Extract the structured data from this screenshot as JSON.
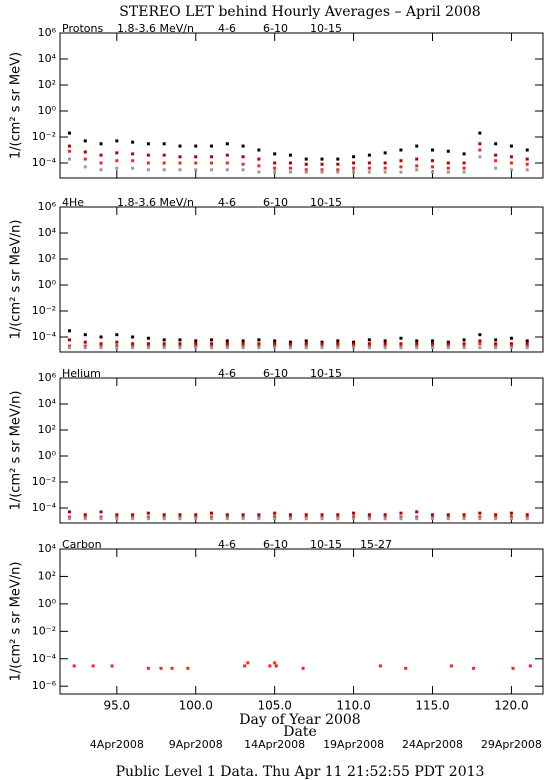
{
  "title": "STEREO LET behind Hourly Averages – April 2008",
  "xlabel": "Day of Year 2008",
  "x2label": "Date",
  "footer": "Public Level 1 Data. Thu Apr 11 21:52:55 PDT 2013",
  "chart_data": [
    {
      "type": "scatter",
      "label": "Protons",
      "ylabel": "1/(cm² s sr MeV)",
      "log_y": true,
      "xlim": [
        91.4,
        122.0
      ],
      "ylim": [
        7e-06,
        1000000
      ],
      "yticks": [
        {
          "value": 0.0001,
          "label": "10⁻⁴"
        },
        {
          "value": 0.01,
          "label": "10⁻²"
        },
        {
          "value": 1,
          "label": "10⁰"
        },
        {
          "value": 100,
          "label": "10²"
        },
        {
          "value": 10000,
          "label": "10⁴"
        },
        {
          "value": 1000000,
          "label": "10⁶"
        }
      ],
      "x": [
        92,
        93,
        94,
        95,
        96,
        97,
        98,
        99,
        100,
        101,
        102,
        103,
        104,
        105,
        106,
        107,
        108,
        109,
        110,
        111,
        112,
        113,
        114,
        115,
        116,
        117,
        118,
        119,
        120,
        121
      ],
      "series": [
        {
          "name": "1.8-3.6 MeV/n",
          "color": "#000000",
          "values": [
            0.02,
            0.005,
            0.003,
            0.005,
            0.004,
            0.003,
            0.003,
            0.002,
            0.002,
            0.002,
            0.003,
            0.002,
            0.001,
            0.0005,
            0.0004,
            0.0002,
            0.0002,
            0.0002,
            0.0003,
            0.0004,
            0.0006,
            0.001,
            0.002,
            0.001,
            0.0008,
            0.0005,
            0.02,
            0.003,
            0.002,
            0.001
          ]
        },
        {
          "name": "4-6",
          "color": "#b00000",
          "values": [
            0.002,
            0.0007,
            0.0004,
            0.0006,
            0.0005,
            0.0004,
            0.0004,
            0.0003,
            0.0003,
            0.0003,
            0.0004,
            0.0003,
            0.0002,
            0.0001,
            0.0001,
            8e-05,
            8e-05,
            8e-05,
            0.0001,
            0.0001,
            0.0001,
            0.00015,
            0.0002,
            0.00015,
            0.0001,
            0.0001,
            0.003,
            0.0004,
            0.0003,
            0.0002
          ]
        },
        {
          "name": "6-10",
          "color": "#ff2020",
          "values": [
            0.0008,
            0.0002,
            0.0001,
            0.00015,
            0.00015,
            0.0001,
            0.0001,
            0.0001,
            0.0001,
            0.0001,
            0.0001,
            8e-05,
            6e-05,
            4e-05,
            4e-05,
            3e-05,
            3e-05,
            3e-05,
            4e-05,
            4e-05,
            4e-05,
            5e-05,
            6e-05,
            5e-05,
            4e-05,
            4e-05,
            0.001,
            0.00015,
            0.0001,
            8e-05
          ]
        },
        {
          "name": "10-15",
          "color": "#999999",
          "values": [
            0.0002,
            5e-05,
            3e-05,
            4e-05,
            4e-05,
            3e-05,
            3e-05,
            3e-05,
            3e-05,
            3e-05,
            3e-05,
            3e-05,
            2e-05,
            2e-05,
            2e-05,
            2e-05,
            2e-05,
            2e-05,
            2e-05,
            2e-05,
            2e-05,
            2e-05,
            3e-05,
            2e-05,
            2e-05,
            2e-05,
            0.0003,
            4e-05,
            3e-05,
            3e-05
          ]
        }
      ]
    },
    {
      "type": "scatter",
      "label": "4He",
      "ylabel": "1/(cm² s sr MeV/n)",
      "log_y": true,
      "xlim": [
        91.4,
        122.0
      ],
      "ylim": [
        7e-06,
        1000000
      ],
      "yticks": [
        {
          "value": 0.0001,
          "label": "10⁻⁴"
        },
        {
          "value": 0.01,
          "label": "10⁻²"
        },
        {
          "value": 1,
          "label": "10⁰"
        },
        {
          "value": 100,
          "label": "10²"
        },
        {
          "value": 10000,
          "label": "10⁴"
        },
        {
          "value": 1000000,
          "label": "10⁶"
        }
      ],
      "x": [
        92,
        93,
        94,
        95,
        96,
        97,
        98,
        99,
        100,
        101,
        102,
        103,
        104,
        105,
        106,
        107,
        108,
        109,
        110,
        111,
        112,
        113,
        114,
        115,
        116,
        117,
        118,
        119,
        120,
        121
      ],
      "series": [
        {
          "name": "1.8-3.6 MeV/n",
          "color": "#000000",
          "values": [
            0.0003,
            0.00015,
            0.0001,
            0.00015,
            0.0001,
            8e-05,
            6e-05,
            6e-05,
            5e-05,
            6e-05,
            5e-05,
            5e-05,
            6e-05,
            5e-05,
            4e-05,
            5e-05,
            4e-05,
            5e-05,
            4e-05,
            6e-05,
            5e-05,
            8e-05,
            5e-05,
            5e-05,
            4e-05,
            6e-05,
            0.00015,
            6e-05,
            8e-05,
            5e-05
          ]
        },
        {
          "name": "4-6",
          "color": "#b00000",
          "values": [
            6e-05,
            4e-05,
            3e-05,
            4e-05,
            3e-05,
            3e-05,
            3e-05,
            3e-05,
            3e-05,
            3e-05,
            3e-05,
            3e-05,
            3e-05,
            3e-05,
            3e-05,
            3e-05,
            3e-05,
            3e-05,
            3e-05,
            3e-05,
            3e-05,
            3e-05,
            3e-05,
            3e-05,
            3e-05,
            3e-05,
            5e-05,
            3e-05,
            3e-05,
            3e-05
          ]
        },
        {
          "name": "6-10",
          "color": "#ff2020",
          "values": [
            2e-05,
            2e-05,
            2e-05,
            2e-05,
            2e-05,
            2e-05,
            2e-05,
            2e-05,
            2e-05,
            2e-05,
            2e-05,
            2e-05,
            2e-05,
            2e-05,
            2e-05,
            2e-05,
            2e-05,
            2e-05,
            2e-05,
            2e-05,
            2e-05,
            2e-05,
            2e-05,
            2e-05,
            2e-05,
            2e-05,
            3e-05,
            2e-05,
            2e-05,
            2e-05
          ]
        },
        {
          "name": "10-15",
          "color": "#999999",
          "values": [
            1.5e-05,
            1.5e-05,
            1.5e-05,
            1.5e-05,
            1.5e-05,
            1.5e-05,
            1.5e-05,
            1.5e-05,
            1.5e-05,
            1.5e-05,
            1.5e-05,
            1.5e-05,
            1.5e-05,
            1.5e-05,
            1.5e-05,
            1.5e-05,
            1.5e-05,
            1.5e-05,
            1.5e-05,
            1.5e-05,
            1.5e-05,
            1.5e-05,
            1.5e-05,
            1.5e-05,
            1.5e-05,
            1.5e-05,
            1.5e-05,
            1.5e-05,
            1.5e-05,
            1.5e-05
          ]
        }
      ]
    },
    {
      "type": "scatter",
      "label": "Helium",
      "ylabel": "1/(cm² s sr MeV/n)",
      "log_y": true,
      "xlim": [
        91.4,
        122.0
      ],
      "ylim": [
        7e-06,
        1000000
      ],
      "yticks": [
        {
          "value": 0.0001,
          "label": "10⁻⁴"
        },
        {
          "value": 0.01,
          "label": "10⁻²"
        },
        {
          "value": 1,
          "label": "10⁰"
        },
        {
          "value": 100,
          "label": "10²"
        },
        {
          "value": 10000,
          "label": "10⁴"
        },
        {
          "value": 1000000,
          "label": "10⁶"
        }
      ],
      "x": [
        92,
        93,
        94,
        95,
        96,
        97,
        98,
        99,
        100,
        101,
        102,
        103,
        104,
        105,
        106,
        107,
        108,
        109,
        110,
        111,
        112,
        113,
        114,
        115,
        116,
        117,
        118,
        119,
        120,
        121
      ],
      "series": [
        {
          "name": "4-6",
          "color": "#b00000",
          "values": [
            5e-05,
            3e-05,
            5e-05,
            3e-05,
            3e-05,
            4e-05,
            3e-05,
            3e-05,
            3e-05,
            4e-05,
            3e-05,
            3e-05,
            3e-05,
            4e-05,
            3e-05,
            3e-05,
            3e-05,
            3e-05,
            4e-05,
            3e-05,
            3e-05,
            4e-05,
            5e-05,
            3e-05,
            3e-05,
            3e-05,
            4e-05,
            3e-05,
            4e-05,
            3e-05
          ]
        },
        {
          "name": "6-10",
          "color": "#ff2020",
          "values": [
            2e-05,
            2e-05,
            2e-05,
            2e-05,
            2e-05,
            2e-05,
            2e-05,
            2e-05,
            2e-05,
            2e-05,
            2e-05,
            2e-05,
            2e-05,
            2e-05,
            2e-05,
            2e-05,
            2e-05,
            2e-05,
            2e-05,
            2e-05,
            2e-05,
            2e-05,
            2e-05,
            2e-05,
            2e-05,
            2e-05,
            2e-05,
            2e-05,
            2e-05,
            2e-05
          ]
        },
        {
          "name": "10-15",
          "color": "#999999",
          "values": [
            1.5e-05,
            1.5e-05,
            1.5e-05,
            1.5e-05,
            1.5e-05,
            1.5e-05,
            1.5e-05,
            1.5e-05,
            1.5e-05,
            1.5e-05,
            1.5e-05,
            1.5e-05,
            1.5e-05,
            1.5e-05,
            1.5e-05,
            1.5e-05,
            1.5e-05,
            1.5e-05,
            1.5e-05,
            1.5e-05,
            1.5e-05,
            1.5e-05,
            1.5e-05,
            1.5e-05,
            1.5e-05,
            1.5e-05,
            1.5e-05,
            1.5e-05,
            1.5e-05,
            1.5e-05
          ]
        }
      ]
    },
    {
      "type": "scatter",
      "label": "Carbon",
      "ylabel": "1/(cm² s sr MeV/n)",
      "log_y": true,
      "xlim": [
        91.4,
        122.0
      ],
      "ylim": [
        2.7e-07,
        10000
      ],
      "yticks": [
        {
          "value": 1e-06,
          "label": "10⁻⁶"
        },
        {
          "value": 0.0001,
          "label": "10⁻⁴"
        },
        {
          "value": 0.01,
          "label": "10⁻²"
        },
        {
          "value": 1,
          "label": "10⁰"
        },
        {
          "value": 100,
          "label": "10²"
        },
        {
          "value": 10000,
          "label": "10⁴"
        }
      ],
      "xticks": [
        {
          "value": 95,
          "label": "95.0"
        },
        {
          "value": 100,
          "label": "100.0"
        },
        {
          "value": 105,
          "label": "105.0"
        },
        {
          "value": 110,
          "label": "110.0"
        },
        {
          "value": 115,
          "label": "115.0"
        },
        {
          "value": 120,
          "label": "120.0"
        }
      ],
      "date_ticks": [
        {
          "value": 95,
          "label": "4Apr2008"
        },
        {
          "value": 100,
          "label": "9Apr2008"
        },
        {
          "value": 105,
          "label": "14Apr2008"
        },
        {
          "value": 110,
          "label": "19Apr2008"
        },
        {
          "value": 115,
          "label": "24Apr2008"
        },
        {
          "value": 120,
          "label": "29Apr2008"
        }
      ],
      "x": [
        92.3,
        93.5,
        94.7,
        97.0,
        97.8,
        98.5,
        99.5,
        103.1,
        103.3,
        104.7,
        105.0,
        105.1,
        106.8,
        111.7,
        113.3,
        116.2,
        117.6,
        120.1,
        121.2
      ],
      "series": [
        {
          "name": "4-6",
          "color": "#b00000",
          "values": [
            null,
            null,
            null,
            null,
            null,
            null,
            null,
            null,
            null,
            null,
            null,
            null,
            null,
            null,
            null,
            null,
            null,
            null,
            null
          ]
        },
        {
          "name": "6-10",
          "color": "#ff2020",
          "values": [
            3e-05,
            3e-05,
            3e-05,
            2e-05,
            2e-05,
            2e-05,
            2e-05,
            3e-05,
            5e-05,
            3e-05,
            5e-05,
            3e-05,
            2e-05,
            3e-05,
            2e-05,
            3e-05,
            2e-05,
            2e-05,
            3e-05
          ]
        },
        {
          "name": "10-15",
          "color": "#999999",
          "values": [
            null,
            null,
            null,
            null,
            null,
            null,
            null,
            null,
            null,
            null,
            null,
            null,
            null,
            null,
            null,
            null,
            null,
            null,
            null
          ]
        },
        {
          "name": "15-27",
          "color": "#0000e0",
          "values": [
            null,
            null,
            null,
            null,
            null,
            null,
            null,
            null,
            null,
            null,
            null,
            null,
            null,
            null,
            null,
            null,
            null,
            null,
            null
          ]
        }
      ]
    }
  ]
}
